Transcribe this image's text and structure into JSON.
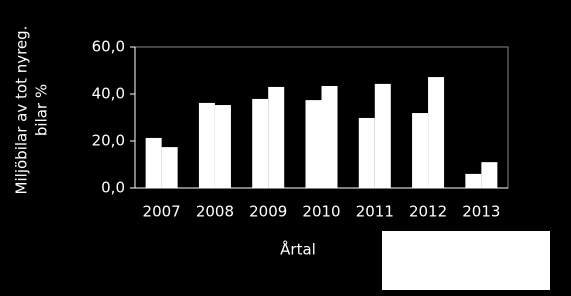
{
  "chart_data": {
    "type": "bar",
    "ylabel": [
      "Miljöbilar av tot nyreg.",
      "bilar %"
    ],
    "xlabel": "Årtal",
    "categories": [
      "2007",
      "2008",
      "2009",
      "2010",
      "2011",
      "2012",
      "2013"
    ],
    "series": [
      {
        "color": "#ffffff",
        "values": [
          21.3,
          36.2,
          37.9,
          37.4,
          29.8,
          31.9,
          6.0
        ]
      },
      {
        "color": "#ffffff",
        "values": [
          17.4,
          35.3,
          43.0,
          43.4,
          44.3,
          47.2,
          11.0
        ]
      }
    ],
    "ylim": [
      0,
      60
    ],
    "yticks": [
      {
        "value": 0,
        "label": "0,0"
      },
      {
        "value": 20,
        "label": "20,0"
      },
      {
        "value": 40,
        "label": "40,0"
      },
      {
        "value": 60,
        "label": "60,0"
      }
    ]
  }
}
